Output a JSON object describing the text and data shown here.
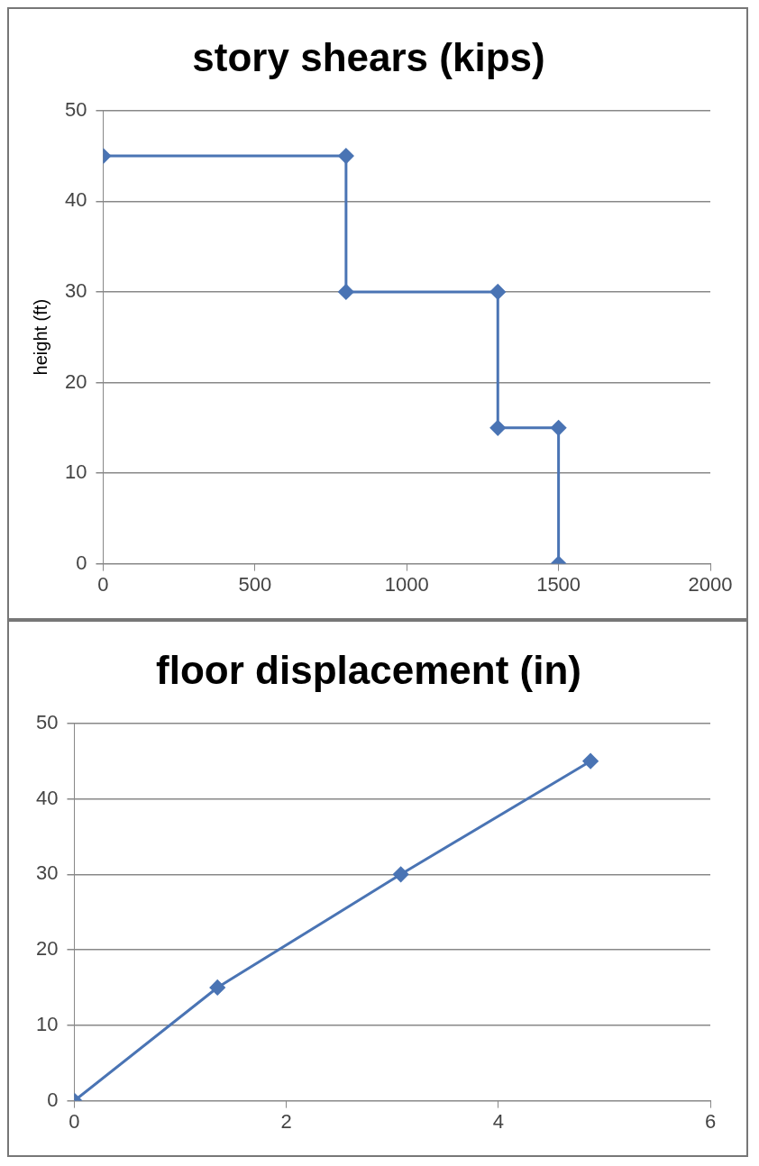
{
  "chart_data": [
    {
      "type": "line",
      "title": "story shears (kips)",
      "ylabel": "height (ft)",
      "x": [
        0,
        800,
        800,
        1300,
        1300,
        1500,
        1500
      ],
      "series": [
        {
          "color": "#4a74b4",
          "values": [
            45,
            45,
            30,
            30,
            15,
            15,
            0
          ]
        }
      ],
      "xlim": [
        0,
        2000
      ],
      "xticks": [
        0,
        500,
        1000,
        1500,
        2000
      ],
      "ylim": [
        0,
        50
      ],
      "yticks": [
        0,
        10,
        20,
        30,
        40,
        50
      ],
      "grid": "y",
      "marker": "diamond"
    },
    {
      "type": "line",
      "title": "floor displacement (in)",
      "x": [
        0,
        1.35,
        3.08,
        4.87
      ],
      "series": [
        {
          "color": "#4a74b4",
          "values": [
            0,
            15,
            30,
            45
          ]
        }
      ],
      "xlim": [
        0,
        6
      ],
      "xticks": [
        0,
        2,
        4,
        6
      ],
      "ylim": [
        0,
        50
      ],
      "yticks": [
        0,
        10,
        20,
        30,
        40,
        50
      ],
      "grid": "y",
      "marker": "diamond"
    }
  ]
}
